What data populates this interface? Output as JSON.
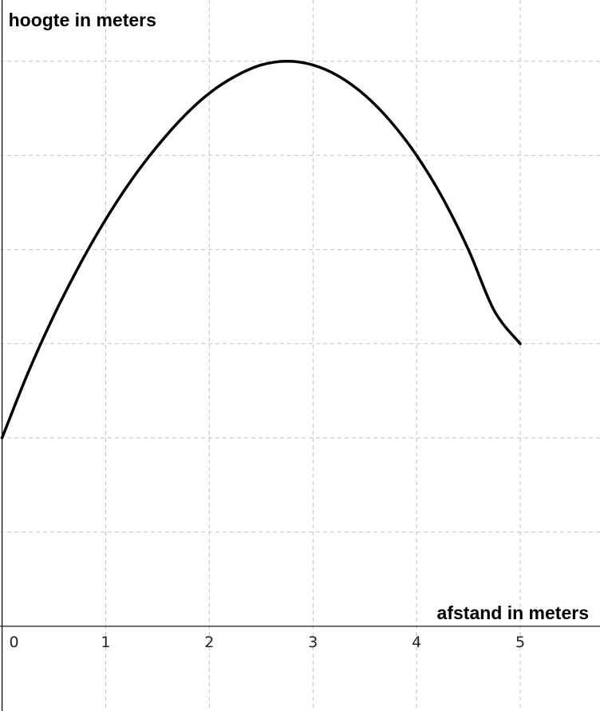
{
  "chart_data": {
    "type": "line",
    "title": "",
    "xlabel": "afstand in meters",
    "ylabel": "hoogte in meters",
    "xlim": [
      -0.02,
      5.77
    ],
    "ylim": [
      -0.9,
      6.65
    ],
    "x_ticks": [
      0,
      1,
      2,
      3,
      4,
      5
    ],
    "y_ticks": [
      0,
      1,
      2,
      3,
      4,
      5,
      6
    ],
    "grid": true,
    "series": [
      {
        "x": [
          0,
          0.25,
          0.5,
          0.75,
          1,
          1.25,
          1.5,
          1.75,
          2,
          2.25,
          2.5,
          2.75,
          3,
          3.25,
          3.5,
          3.75,
          4,
          4.25,
          4.5,
          4.75,
          5
        ],
        "y": [
          2,
          2.69,
          3.3,
          3.84,
          4.32,
          4.74,
          5.1,
          5.41,
          5.66,
          5.84,
          5.96,
          6.0,
          5.96,
          5.84,
          5.64,
          5.36,
          5.0,
          4.55,
          4.0,
          3.35,
          3.0
        ],
        "color": "#000000"
      }
    ]
  }
}
